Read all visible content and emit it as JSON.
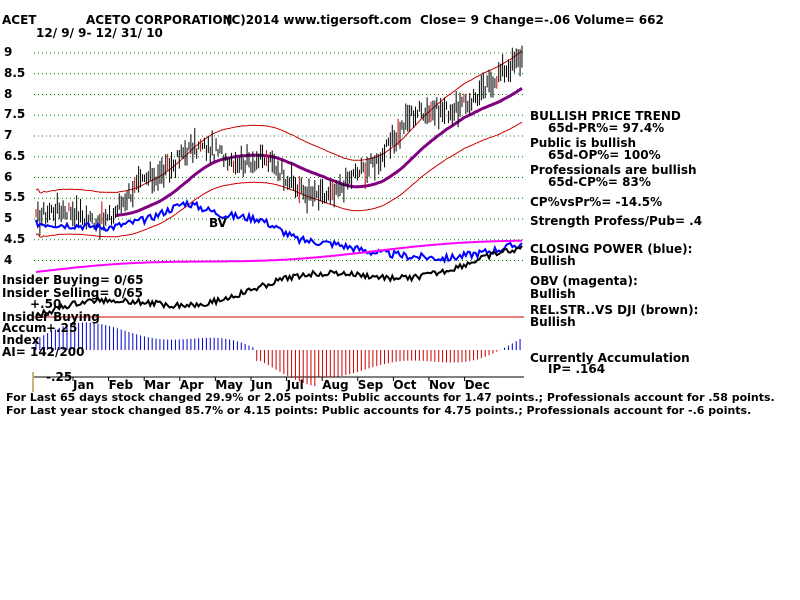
{
  "header": {
    "ticker": "ACET",
    "company": "ACETO CORPORATION",
    "copyright": "(C)2014 www.tigersoft.com",
    "quote": "Close=  9  Change=-.06 Volume= 662",
    "date_range": "12/ 9/ 9- 12/ 31/ 10"
  },
  "price_axis": [
    "9",
    "8.5",
    "8",
    "7.5",
    "7",
    "6.5",
    "6",
    "5.5",
    "5",
    "4.5",
    "4"
  ],
  "months": [
    "Jan",
    "Feb",
    "Mar",
    "Apr",
    "May",
    "Jun",
    "Jul",
    "Aug",
    "Sep",
    "Oct",
    "Nov",
    "Dec"
  ],
  "chart_markers": {
    "buy": "BV"
  },
  "left_panel": {
    "insider_buying": "Insider Buying= 0/65",
    "insider_selling": "Insider Selling= 0/65",
    "plus50": "+.50",
    "insider_buying2": "Insider Buying",
    "accum": "Accum",
    "plus25": "+.25",
    "index": "Index",
    "ai": "AI= 142/200",
    "minus25": "-.25"
  },
  "right_panel": {
    "trend": "BULLISH PRICE TREND",
    "pr": "65d-PR%= 97.4%",
    "public": "Public is bullish",
    "op": "65d-OP%= 100%",
    "pros": "Professionals are bullish",
    "cp": "65d-CP%= 83%",
    "cpvspr": "CP%vsPr%= -14.5%",
    "strength": "Strength Profess/Pub= .4",
    "closing_power": "CLOSING POWER (blue):",
    "closing_power_state": "Bullish",
    "obv": "OBV (magenta):",
    "obv_state": "Bullish",
    "relstr": "REL.STR..VS DJI (brown):",
    "relstr_state": "Bullish",
    "accum": "Currently Accumulation",
    "ip": "IP=  .164"
  },
  "footer": {
    "line1": "For Last 65 days stock changed  29.9% or  2.05 points:  Public accounts for  1.47 points.;  Professionals account for  .58 points.",
    "line2": "For Last year stock changed  85.7% or  4.15 points:  Public accounts for  4.75 points.;  Professionals account for -.6 points."
  },
  "colors": {
    "price": "#000000",
    "bands": "#cc0000",
    "ma": "#800080",
    "closing_power": "#0000ff",
    "obv": "#ff00ff",
    "relstr": "#000000",
    "accum_pos": "#0000cc",
    "accum_neg": "#cc0000",
    "grid": "#008000"
  },
  "chart_data": {
    "type": "line",
    "x": [
      "Dec 09",
      "Jan",
      "Feb",
      "Mar",
      "Apr",
      "May",
      "Jun",
      "Jul",
      "Aug",
      "Sep",
      "Oct",
      "Nov",
      "Dec",
      "Dec 31"
    ],
    "series": [
      {
        "name": "Close",
        "values": [
          5.0,
          5.2,
          5.0,
          6.0,
          6.6,
          6.6,
          6.4,
          5.8,
          5.5,
          6.4,
          7.4,
          7.7,
          8.0,
          9.0
        ]
      },
      {
        "name": "CLOSING POWER (blue):",
        "values": [
          4.9,
          4.85,
          4.8,
          5.0,
          5.4,
          5.1,
          5.0,
          4.5,
          4.4,
          4.2,
          4.1,
          4.05,
          4.2,
          4.4
        ]
      }
    ],
    "ylim": [
      3.9,
      9.2
    ]
  }
}
